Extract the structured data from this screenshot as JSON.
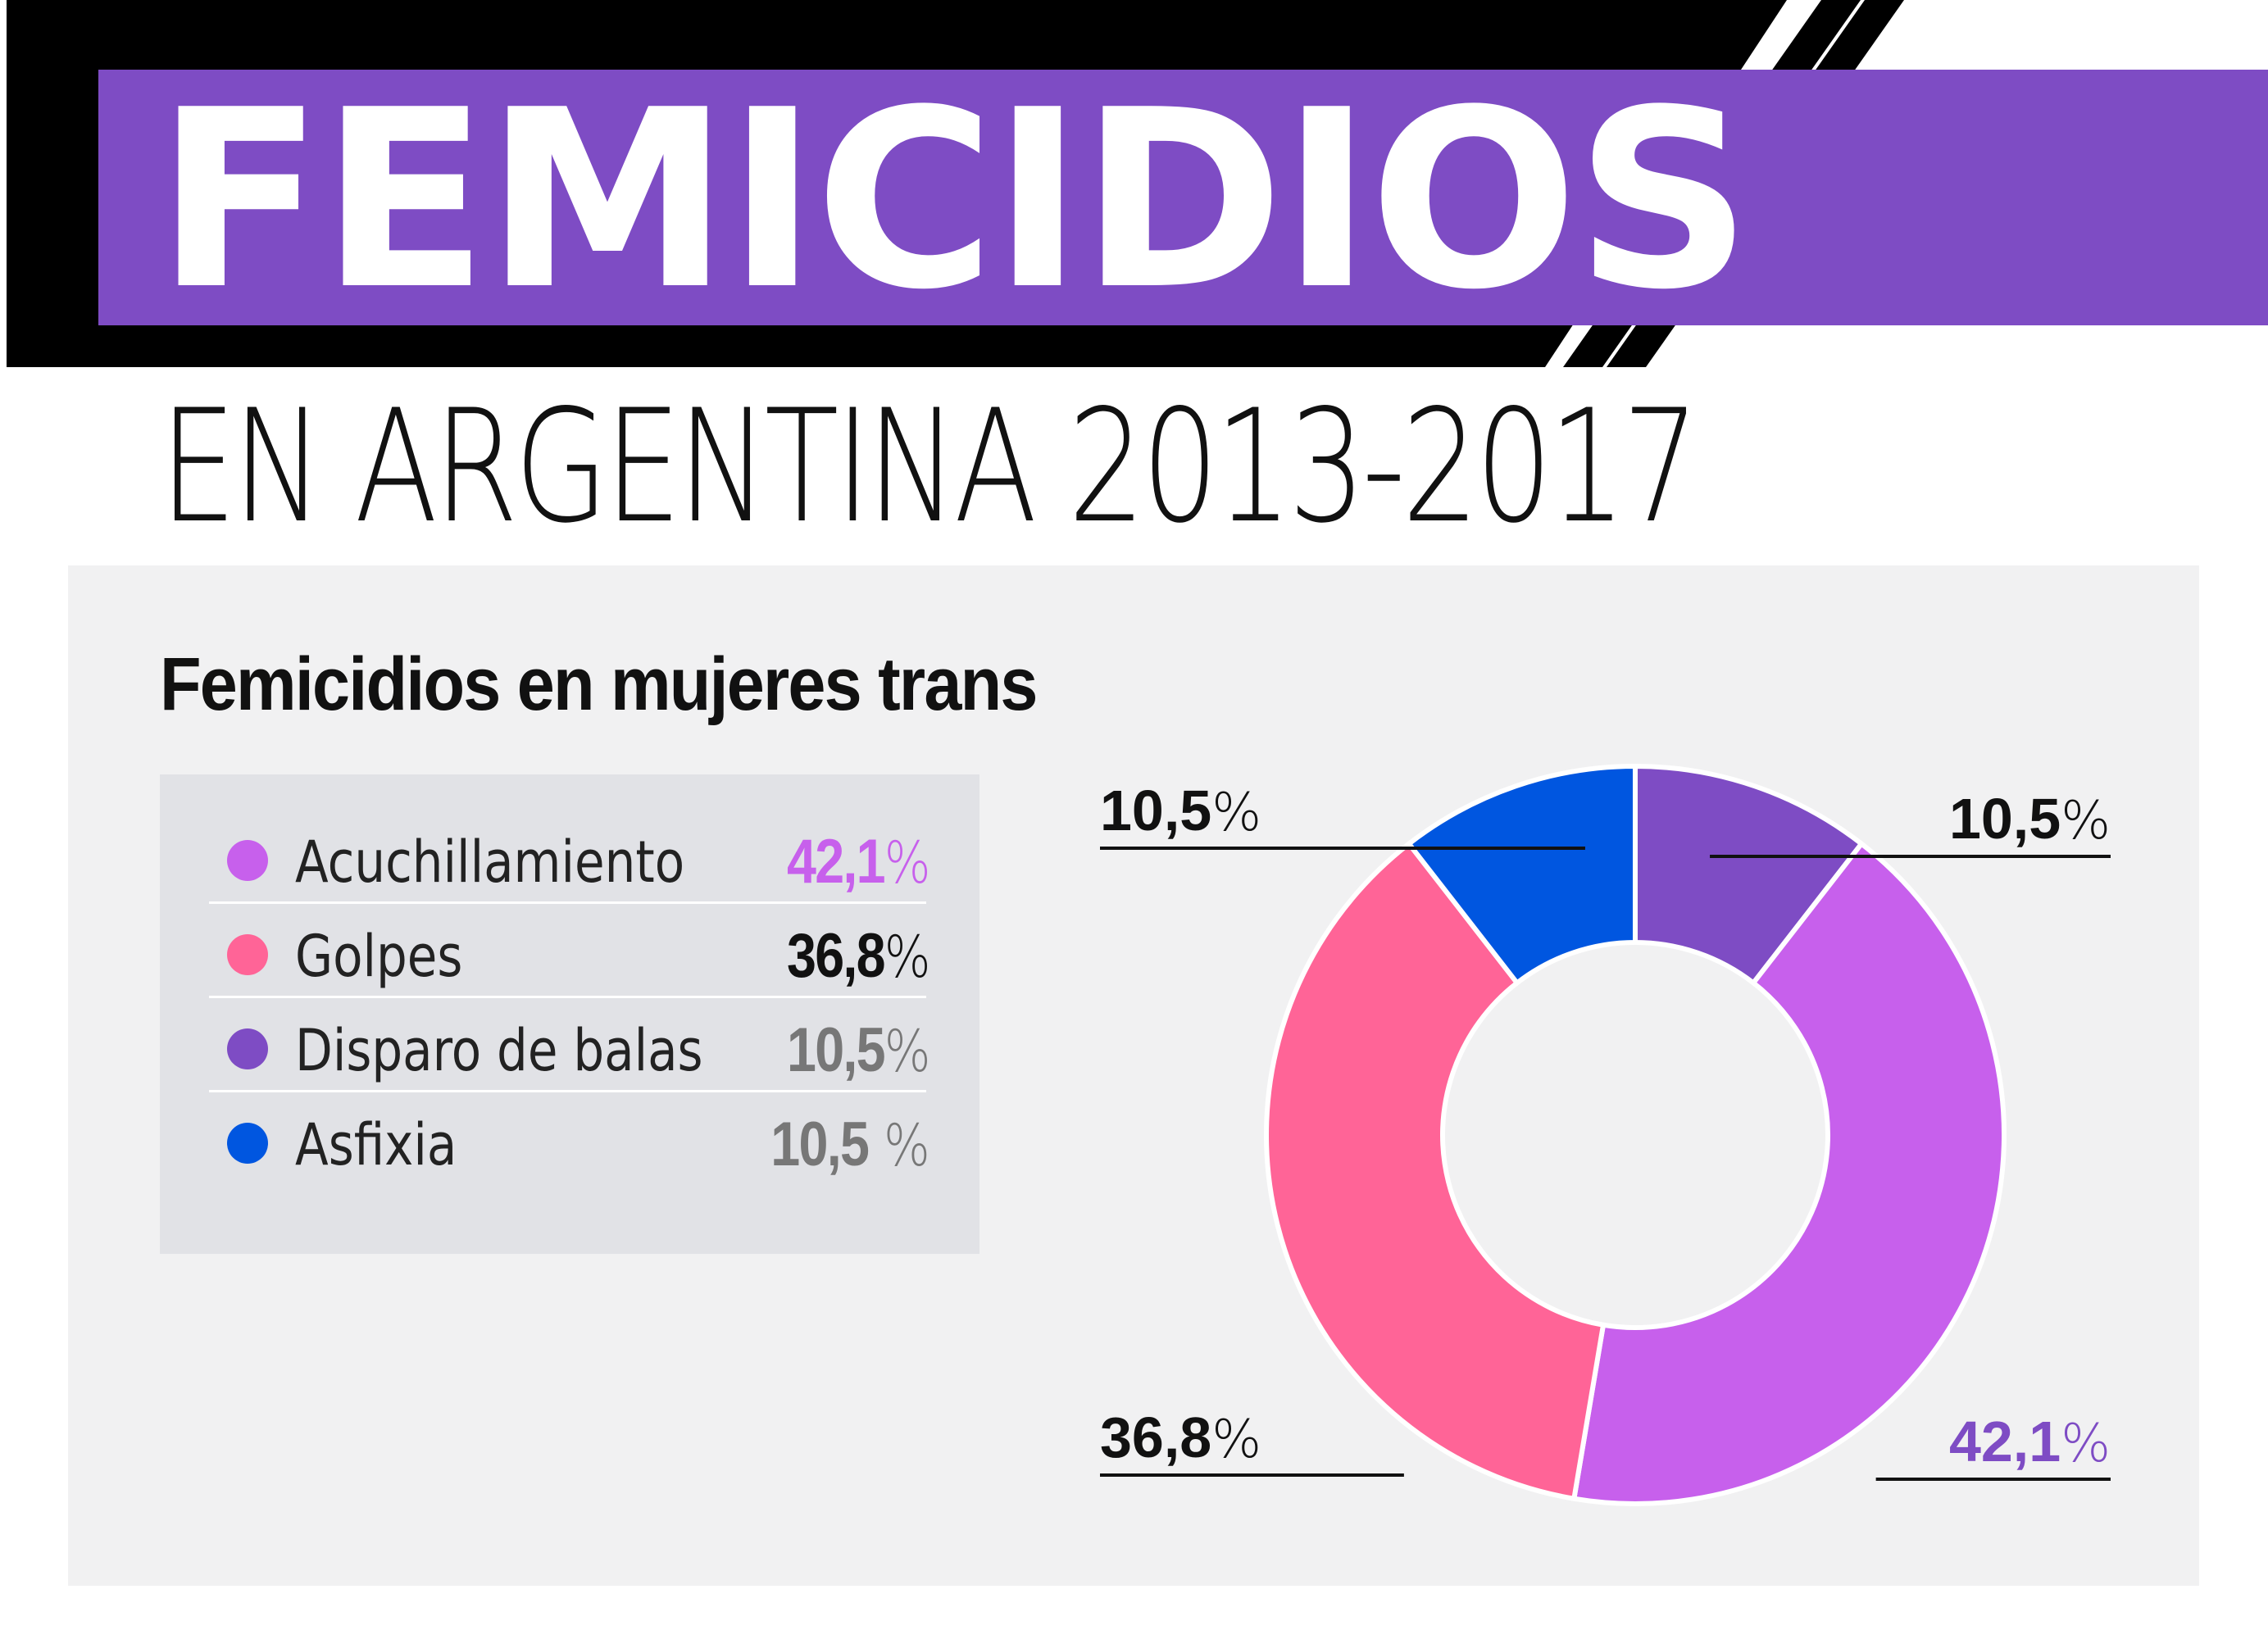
{
  "header": {
    "title": "FEMICIDIOS",
    "subtitle": "EN ARGENTINA 2013-2017"
  },
  "colors": {
    "banner_purple": "#7e4cc4",
    "banner_black": "#000000",
    "panel_bg": "#f1f1f2",
    "legend_bg": "#e1e2e6"
  },
  "chart_data": {
    "type": "pie",
    "title": "Femicidios en mujeres trans",
    "donut": true,
    "legend_placement": "left",
    "slices": [
      {
        "label": "Disparo de balas",
        "value": 10.5,
        "color": "#7e4cc4",
        "num": "10,5",
        "pct": "%",
        "value_color": "#777777",
        "callout_color": "#111111"
      },
      {
        "label": "Acuchillamiento",
        "value": 42.1,
        "color": "#c760ec",
        "num": "42,1",
        "pct": "%",
        "value_color": "#c760ec",
        "callout_color": "#7e4cc4"
      },
      {
        "label": "Golpes",
        "value": 36.8,
        "color": "#ff6497",
        "num": "36,8",
        "pct": "%",
        "value_color": "#111111",
        "callout_color": "#111111"
      },
      {
        "label": "Asfixia",
        "value": 10.5,
        "color": "#0056e0",
        "num": "10,5",
        "pct": " %",
        "value_color": "#777777",
        "callout_color": "#111111"
      }
    ],
    "legend_order": [
      1,
      2,
      0,
      3
    ]
  }
}
